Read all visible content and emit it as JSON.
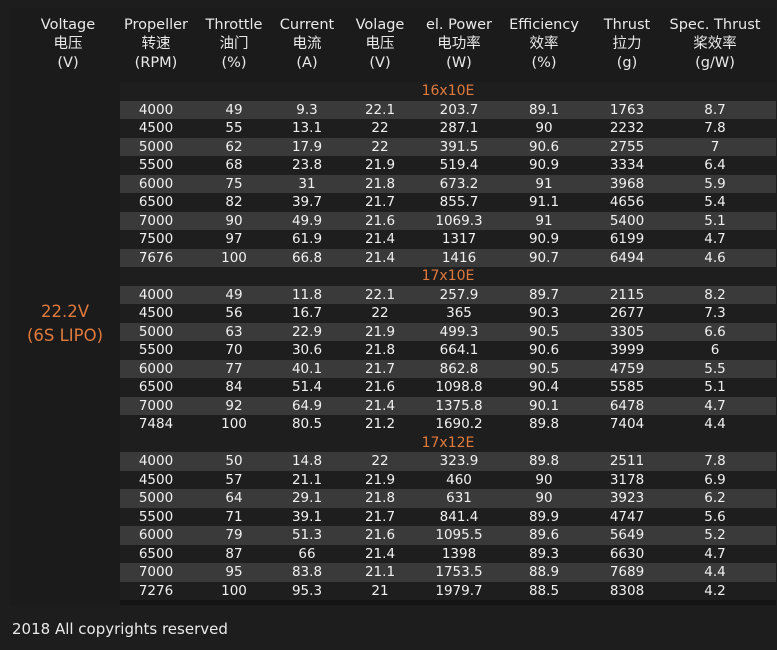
{
  "header": {
    "columns": [
      {
        "en": "Voltage",
        "cn": "电压",
        "unit": "(V)"
      },
      {
        "en": "Propeller",
        "cn": "转速",
        "unit": "(RPM)"
      },
      {
        "en": "Throttle",
        "cn": "油门",
        "unit": "(%)"
      },
      {
        "en": "Current",
        "cn": "电流",
        "unit": "(A)"
      },
      {
        "en": "Volage",
        "cn": "电压",
        "unit": "(V)"
      },
      {
        "en": "el. Power",
        "cn": "电功率",
        "unit": "(W)"
      },
      {
        "en": "Efficiency",
        "cn": "效率",
        "unit": "(%)"
      },
      {
        "en": "Thrust",
        "cn": "拉力",
        "unit": "(g)"
      },
      {
        "en": "Spec. Thrust",
        "cn": "桨效率",
        "unit": "(g/W)"
      }
    ]
  },
  "voltage": {
    "value": "22.2V",
    "battery": "(6S LIPO)"
  },
  "groups": [
    {
      "title": "16x10E",
      "rows": [
        [
          "4000",
          "49",
          "9.3",
          "22.1",
          "203.7",
          "89.1",
          "1763",
          "8.7"
        ],
        [
          "4500",
          "55",
          "13.1",
          "22",
          "287.1",
          "90",
          "2232",
          "7.8"
        ],
        [
          "5000",
          "62",
          "17.9",
          "22",
          "391.5",
          "90.6",
          "2755",
          "7"
        ],
        [
          "5500",
          "68",
          "23.8",
          "21.9",
          "519.4",
          "90.9",
          "3334",
          "6.4"
        ],
        [
          "6000",
          "75",
          "31",
          "21.8",
          "673.2",
          "91",
          "3968",
          "5.9"
        ],
        [
          "6500",
          "82",
          "39.7",
          "21.7",
          "855.7",
          "91.1",
          "4656",
          "5.4"
        ],
        [
          "7000",
          "90",
          "49.9",
          "21.6",
          "1069.3",
          "91",
          "5400",
          "5.1"
        ],
        [
          "7500",
          "97",
          "61.9",
          "21.4",
          "1317",
          "90.9",
          "6199",
          "4.7"
        ],
        [
          "7676",
          "100",
          "66.8",
          "21.4",
          "1416",
          "90.7",
          "6494",
          "4.6"
        ]
      ]
    },
    {
      "title": "17x10E",
      "rows": [
        [
          "4000",
          "49",
          "11.8",
          "22.1",
          "257.9",
          "89.7",
          "2115",
          "8.2"
        ],
        [
          "4500",
          "56",
          "16.7",
          "22",
          "365",
          "90.3",
          "2677",
          "7.3"
        ],
        [
          "5000",
          "63",
          "22.9",
          "21.9",
          "499.3",
          "90.5",
          "3305",
          "6.6"
        ],
        [
          "5500",
          "70",
          "30.6",
          "21.8",
          "664.1",
          "90.6",
          "3999",
          "6"
        ],
        [
          "6000",
          "77",
          "40.1",
          "21.7",
          "862.8",
          "90.5",
          "4759",
          "5.5"
        ],
        [
          "6500",
          "84",
          "51.4",
          "21.6",
          "1098.8",
          "90.4",
          "5585",
          "5.1"
        ],
        [
          "7000",
          "92",
          "64.9",
          "21.4",
          "1375.8",
          "90.1",
          "6478",
          "4.7"
        ],
        [
          "7484",
          "100",
          "80.5",
          "21.2",
          "1690.2",
          "89.8",
          "7404",
          "4.4"
        ]
      ]
    },
    {
      "title": "17x12E",
      "rows": [
        [
          "4000",
          "50",
          "14.8",
          "22",
          "323.9",
          "89.8",
          "2511",
          "7.8"
        ],
        [
          "4500",
          "57",
          "21.1",
          "21.9",
          "460",
          "90",
          "3178",
          "6.9"
        ],
        [
          "5000",
          "64",
          "29.1",
          "21.8",
          "631",
          "90",
          "3923",
          "6.2"
        ],
        [
          "5500",
          "71",
          "39.1",
          "21.7",
          "841.4",
          "89.9",
          "4747",
          "5.6"
        ],
        [
          "6000",
          "79",
          "51.3",
          "21.6",
          "1095.5",
          "89.6",
          "5649",
          "5.2"
        ],
        [
          "6500",
          "87",
          "66",
          "21.4",
          "1398",
          "89.3",
          "6630",
          "4.7"
        ],
        [
          "7000",
          "95",
          "83.8",
          "21.1",
          "1753.5",
          "88.9",
          "7689",
          "4.4"
        ],
        [
          "7276",
          "100",
          "95.3",
          "21",
          "1979.7",
          "88.5",
          "8308",
          "4.2"
        ]
      ]
    }
  ],
  "footer": {
    "text": "2018 All copyrights reserved"
  },
  "colors": {
    "accent": "#e07a3c",
    "row_light": "#3a3a3a",
    "row_dark": "#1e1e1e",
    "background": "#1b1b1b"
  }
}
